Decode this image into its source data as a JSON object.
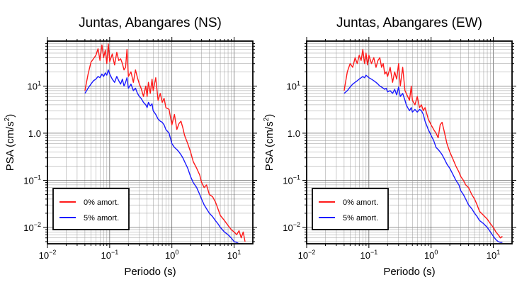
{
  "chart_data": [
    {
      "type": "line",
      "title": "Juntas, Abangares (NS)",
      "xlabel": "Periodo (s)",
      "ylabel_main": "PSA (cm/s",
      "ylabel_sup": "2",
      "ylabel_end": ")",
      "x_scale": "log",
      "y_scale": "log",
      "xlim": [
        0.01,
        20
      ],
      "ylim": [
        0.0045,
        90
      ],
      "grid": true,
      "legend_position": "bottom-left",
      "x_ticks": [
        {
          "value": 0.01,
          "base": "10",
          "exp": "−2"
        },
        {
          "value": 0.1,
          "base": "10",
          "exp": "−1"
        },
        {
          "value": 1,
          "base": "10",
          "exp": "0"
        },
        {
          "value": 10,
          "base": "10",
          "exp": "1"
        }
      ],
      "y_ticks": [
        {
          "value": 0.01,
          "base": "10",
          "exp": "−2"
        },
        {
          "value": 0.1,
          "base": "10",
          "exp": "−1"
        },
        {
          "value": 1,
          "base": "1.0",
          "exp": ""
        },
        {
          "value": 10,
          "base": "10",
          "exp": "1"
        }
      ],
      "series": [
        {
          "name": "0% amort.",
          "color": "#ff1a1a",
          "x": [
            0.04,
            0.045,
            0.05,
            0.055,
            0.06,
            0.065,
            0.07,
            0.075,
            0.08,
            0.085,
            0.09,
            0.095,
            0.1,
            0.11,
            0.12,
            0.13,
            0.14,
            0.15,
            0.16,
            0.17,
            0.18,
            0.19,
            0.2,
            0.22,
            0.24,
            0.26,
            0.28,
            0.3,
            0.32,
            0.35,
            0.38,
            0.4,
            0.42,
            0.45,
            0.48,
            0.5,
            0.55,
            0.6,
            0.65,
            0.7,
            0.75,
            0.8,
            0.9,
            1.0,
            1.1,
            1.2,
            1.3,
            1.4,
            1.5,
            1.6,
            1.8,
            2.0,
            2.2,
            2.5,
            2.8,
            3.0,
            3.3,
            3.6,
            4.0,
            4.5,
            5.0,
            5.5,
            6.0,
            7.0,
            8.0,
            9.0,
            10,
            11,
            12,
            13,
            14,
            15
          ],
          "y": [
            8,
            18,
            32,
            38,
            45,
            62,
            35,
            75,
            40,
            58,
            30,
            78,
            33,
            48,
            28,
            52,
            35,
            38,
            30,
            22,
            25,
            60,
            16,
            20,
            12,
            22,
            15,
            11,
            9,
            6,
            10,
            6,
            12,
            7,
            14,
            8,
            15,
            5,
            7,
            4.5,
            5.5,
            3.5,
            3.2,
            1.5,
            2.5,
            1.2,
            1.6,
            1.8,
            1.3,
            0.9,
            0.6,
            0.4,
            0.25,
            0.18,
            0.13,
            0.09,
            0.07,
            0.08,
            0.05,
            0.045,
            0.035,
            0.025,
            0.018,
            0.014,
            0.011,
            0.009,
            0.008,
            0.007,
            0.0085,
            0.006,
            0.008,
            0.005
          ]
        },
        {
          "name": "5% amort.",
          "color": "#1a1aff",
          "x": [
            0.04,
            0.045,
            0.05,
            0.055,
            0.06,
            0.065,
            0.07,
            0.075,
            0.08,
            0.085,
            0.09,
            0.095,
            0.1,
            0.11,
            0.12,
            0.13,
            0.14,
            0.15,
            0.16,
            0.17,
            0.18,
            0.19,
            0.2,
            0.22,
            0.24,
            0.26,
            0.28,
            0.3,
            0.32,
            0.35,
            0.38,
            0.4,
            0.42,
            0.45,
            0.48,
            0.5,
            0.55,
            0.6,
            0.65,
            0.7,
            0.75,
            0.8,
            0.9,
            1.0,
            1.1,
            1.2,
            1.3,
            1.4,
            1.5,
            1.6,
            1.8,
            2.0,
            2.2,
            2.5,
            2.8,
            3.0,
            3.3,
            3.6,
            4.0,
            4.5,
            5.0,
            5.5,
            6.0,
            7.0,
            8.0,
            9.0,
            10,
            11,
            12,
            13,
            14
          ],
          "y": [
            7,
            9,
            11,
            13,
            14,
            16,
            15,
            18,
            16,
            19,
            17,
            22,
            18,
            14,
            12,
            16,
            13,
            11,
            14,
            10,
            12,
            15,
            9,
            11,
            8,
            9,
            7,
            6,
            5.5,
            4.5,
            4,
            3.5,
            4.5,
            3.8,
            4.2,
            3,
            2.5,
            2,
            1.8,
            1.7,
            1.5,
            1.2,
            1,
            0.6,
            0.5,
            0.45,
            0.4,
            0.35,
            0.3,
            0.25,
            0.18,
            0.12,
            0.09,
            0.07,
            0.05,
            0.04,
            0.03,
            0.025,
            0.02,
            0.017,
            0.014,
            0.012,
            0.01,
            0.008,
            0.007,
            0.006,
            0.005,
            0.0048,
            0.0045,
            0.0045,
            0.0045
          ]
        }
      ]
    },
    {
      "type": "line",
      "title": "Juntas, Abangares (EW)",
      "xlabel": "Periodo (s)",
      "ylabel_main": "PSA (cm/s",
      "ylabel_sup": "2",
      "ylabel_end": ")",
      "x_scale": "log",
      "y_scale": "log",
      "xlim": [
        0.01,
        20
      ],
      "ylim": [
        0.0045,
        90
      ],
      "grid": true,
      "legend_position": "bottom-left",
      "x_ticks": [
        {
          "value": 0.01,
          "base": "10",
          "exp": "−2"
        },
        {
          "value": 0.1,
          "base": "10",
          "exp": "−1"
        },
        {
          "value": 1,
          "base": "10",
          "exp": "0"
        },
        {
          "value": 10,
          "base": "10",
          "exp": "1"
        }
      ],
      "y_ticks": [
        {
          "value": 0.01,
          "base": "10",
          "exp": "−2"
        },
        {
          "value": 0.1,
          "base": "10",
          "exp": "−1"
        },
        {
          "value": 1,
          "base": "1.0",
          "exp": ""
        },
        {
          "value": 10,
          "base": "10",
          "exp": "1"
        }
      ],
      "series": [
        {
          "name": "0% amort.",
          "color": "#ff1a1a",
          "x": [
            0.04,
            0.045,
            0.05,
            0.055,
            0.06,
            0.065,
            0.07,
            0.075,
            0.08,
            0.085,
            0.09,
            0.095,
            0.1,
            0.11,
            0.12,
            0.13,
            0.14,
            0.15,
            0.16,
            0.17,
            0.18,
            0.19,
            0.2,
            0.22,
            0.24,
            0.26,
            0.28,
            0.3,
            0.32,
            0.35,
            0.38,
            0.4,
            0.42,
            0.45,
            0.48,
            0.5,
            0.55,
            0.6,
            0.65,
            0.7,
            0.75,
            0.8,
            0.9,
            1.0,
            1.1,
            1.2,
            1.3,
            1.4,
            1.5,
            1.6,
            1.8,
            2.0,
            2.2,
            2.5,
            2.8,
            3.0,
            3.3,
            3.6,
            4.0,
            4.5,
            5.0,
            5.5,
            6.0,
            7.0,
            8.0,
            9.0,
            10,
            11,
            12,
            13,
            14
          ],
          "y": [
            8,
            20,
            30,
            25,
            40,
            30,
            45,
            35,
            60,
            30,
            50,
            28,
            45,
            30,
            40,
            25,
            35,
            40,
            25,
            30,
            18,
            20,
            16,
            25,
            12,
            20,
            14,
            30,
            10,
            25,
            8,
            7,
            6,
            5,
            10,
            5,
            4,
            6,
            3.5,
            4,
            3,
            3.5,
            2,
            1.5,
            1.2,
            1,
            0.8,
            1.5,
            1.7,
            1.2,
            0.6,
            0.4,
            0.3,
            0.2,
            0.15,
            0.12,
            0.1,
            0.08,
            0.07,
            0.05,
            0.04,
            0.03,
            0.022,
            0.018,
            0.015,
            0.012,
            0.01,
            0.008,
            0.007,
            0.006,
            0.0065
          ]
        },
        {
          "name": "5% amort.",
          "color": "#1a1aff",
          "x": [
            0.04,
            0.045,
            0.05,
            0.055,
            0.06,
            0.065,
            0.07,
            0.075,
            0.08,
            0.085,
            0.09,
            0.095,
            0.1,
            0.11,
            0.12,
            0.13,
            0.14,
            0.15,
            0.16,
            0.17,
            0.18,
            0.19,
            0.2,
            0.22,
            0.24,
            0.26,
            0.28,
            0.3,
            0.32,
            0.35,
            0.38,
            0.4,
            0.42,
            0.45,
            0.48,
            0.5,
            0.55,
            0.6,
            0.65,
            0.7,
            0.75,
            0.8,
            0.9,
            1.0,
            1.1,
            1.2,
            1.3,
            1.4,
            1.5,
            1.6,
            1.8,
            2.0,
            2.2,
            2.5,
            2.8,
            3.0,
            3.3,
            3.6,
            4.0,
            4.5,
            5.0,
            5.5,
            6.0,
            7.0,
            8.0,
            9.0,
            10,
            11,
            12,
            13,
            14
          ],
          "y": [
            7,
            8,
            9.5,
            11,
            12,
            13,
            14,
            15,
            16,
            15,
            17,
            16,
            15,
            14,
            13,
            12,
            11,
            10,
            9.5,
            9,
            8.5,
            9,
            7.5,
            8,
            7,
            8.5,
            6.5,
            9.5,
            6,
            7,
            5,
            4,
            3.5,
            3,
            3.5,
            2.8,
            3.2,
            2.8,
            3.2,
            3,
            2.5,
            1.8,
            1.2,
            0.9,
            0.7,
            0.5,
            0.45,
            0.4,
            0.35,
            0.3,
            0.22,
            0.18,
            0.14,
            0.1,
            0.08,
            0.06,
            0.05,
            0.04,
            0.03,
            0.025,
            0.02,
            0.017,
            0.014,
            0.012,
            0.01,
            0.008,
            0.0065,
            0.0055,
            0.005,
            0.0048,
            0.0048
          ]
        }
      ]
    }
  ]
}
